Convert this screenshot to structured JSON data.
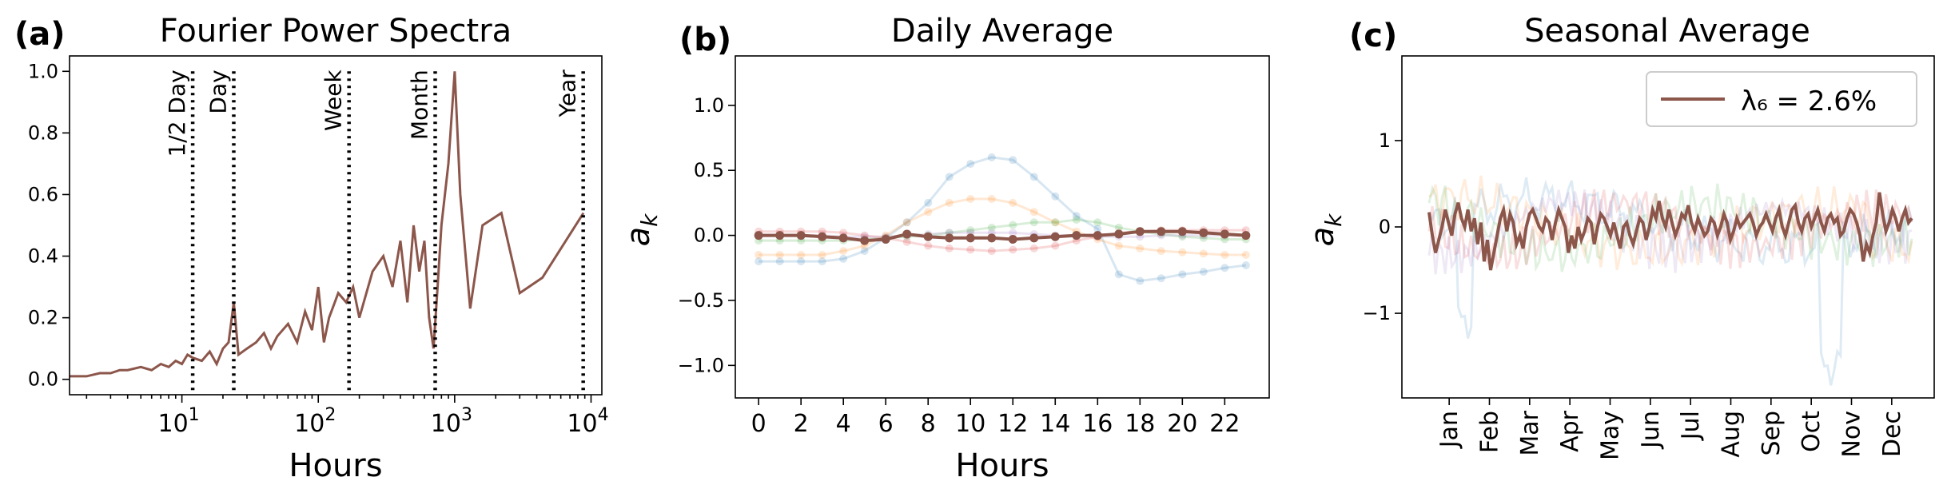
{
  "panels": {
    "a": {
      "letter": "(a)",
      "title": "Fourier Power Spectra",
      "xlabel": "Hours"
    },
    "b": {
      "letter": "(b)",
      "title": "Daily Average",
      "xlabel": "Hours",
      "ylabel": "a_k"
    },
    "c": {
      "letter": "(c)",
      "title": "Seasonal Average",
      "ylabel": "a_k"
    }
  },
  "colors": {
    "main": "#8c564b",
    "faded": [
      "#1f77b4",
      "#ff7f0e",
      "#2ca02c",
      "#d62728",
      "#9467bd"
    ]
  },
  "chart_data": [
    {
      "type": "line",
      "title": "Fourier Power Spectra",
      "xlabel": "Hours",
      "ylabel": "",
      "xscale": "log",
      "xlim": [
        1.5,
        12000
      ],
      "ylim": [
        -0.05,
        1.05
      ],
      "xticks": [
        "10^1",
        "10^2",
        "10^3",
        "10^4"
      ],
      "yticks": [
        "0.0",
        "0.2",
        "0.4",
        "0.6",
        "0.8",
        "1.0"
      ],
      "reference_lines": [
        {
          "label": "1/2 Day",
          "x": 12
        },
        {
          "label": "Day",
          "x": 24
        },
        {
          "label": "Week",
          "x": 168
        },
        {
          "label": "Month",
          "x": 720
        },
        {
          "label": "Year",
          "x": 8760
        }
      ],
      "series": [
        {
          "color": "#8c564b",
          "x": [
            1.5,
            2,
            2.5,
            3,
            3.5,
            4,
            5,
            6,
            7,
            8,
            9,
            10,
            11,
            12,
            14,
            16,
            18,
            20,
            22,
            24,
            26,
            30,
            35,
            40,
            45,
            50,
            60,
            70,
            80,
            90,
            100,
            110,
            120,
            140,
            160,
            180,
            200,
            250,
            300,
            350,
            400,
            450,
            500,
            550,
            600,
            650,
            700,
            750,
            800,
            900,
            1000,
            1100,
            1300,
            1600,
            2200,
            3000,
            4400,
            8800
          ],
          "y": [
            0.01,
            0.01,
            0.02,
            0.02,
            0.03,
            0.03,
            0.04,
            0.03,
            0.05,
            0.04,
            0.06,
            0.05,
            0.08,
            0.07,
            0.06,
            0.09,
            0.05,
            0.1,
            0.12,
            0.25,
            0.08,
            0.1,
            0.12,
            0.15,
            0.1,
            0.14,
            0.18,
            0.12,
            0.22,
            0.16,
            0.3,
            0.12,
            0.2,
            0.28,
            0.25,
            0.3,
            0.2,
            0.35,
            0.4,
            0.3,
            0.45,
            0.25,
            0.5,
            0.35,
            0.45,
            0.2,
            0.1,
            0.3,
            0.5,
            0.7,
            1.0,
            0.6,
            0.23,
            0.5,
            0.54,
            0.28,
            0.33,
            0.54
          ]
        }
      ]
    },
    {
      "type": "line",
      "title": "Daily Average",
      "xlabel": "Hours",
      "ylabel": "a_k",
      "xlim": [
        -1.1,
        24.1
      ],
      "ylim": [
        -1.25,
        1.38
      ],
      "xticks": [
        0,
        2,
        4,
        6,
        8,
        10,
        12,
        14,
        16,
        18,
        20,
        22
      ],
      "yticks": [
        "1.0",
        "0.5",
        "0.0",
        "−0.5",
        "−1.0"
      ],
      "x": [
        0,
        1,
        2,
        3,
        4,
        5,
        6,
        7,
        8,
        9,
        10,
        11,
        12,
        13,
        14,
        15,
        16,
        17,
        18,
        19,
        20,
        21,
        22,
        23
      ],
      "series": [
        {
          "color": "#1f77b4",
          "faded": true,
          "values": [
            -0.2,
            -0.2,
            -0.2,
            -0.2,
            -0.18,
            -0.12,
            -0.02,
            0.1,
            0.25,
            0.45,
            0.55,
            0.6,
            0.58,
            0.45,
            0.3,
            0.15,
            0.05,
            -0.3,
            -0.35,
            -0.33,
            -0.3,
            -0.28,
            -0.25,
            -0.23
          ]
        },
        {
          "color": "#ff7f0e",
          "faded": true,
          "values": [
            -0.15,
            -0.15,
            -0.15,
            -0.15,
            -0.12,
            -0.08,
            0.0,
            0.1,
            0.18,
            0.25,
            0.28,
            0.28,
            0.25,
            0.18,
            0.1,
            0.03,
            -0.03,
            -0.08,
            -0.1,
            -0.12,
            -0.13,
            -0.14,
            -0.15,
            -0.15
          ]
        },
        {
          "color": "#2ca02c",
          "faded": true,
          "values": [
            -0.04,
            -0.04,
            -0.04,
            -0.04,
            -0.04,
            -0.03,
            -0.02,
            -0.01,
            0.0,
            0.02,
            0.04,
            0.06,
            0.08,
            0.1,
            0.1,
            0.12,
            0.1,
            0.06,
            0.03,
            0.01,
            -0.01,
            -0.02,
            -0.03,
            -0.03
          ]
        },
        {
          "color": "#d62728",
          "faded": true,
          "values": [
            0.03,
            0.03,
            0.03,
            0.03,
            0.02,
            0.0,
            -0.02,
            -0.05,
            -0.08,
            -0.1,
            -0.11,
            -0.12,
            -0.11,
            -0.1,
            -0.08,
            -0.04,
            -0.01,
            0.02,
            0.03,
            0.04,
            0.04,
            0.04,
            0.04,
            0.04
          ]
        },
        {
          "color": "#9467bd",
          "faded": true,
          "values": [
            0.0,
            0.0,
            0.0,
            0.0,
            -0.01,
            -0.01,
            -0.01,
            0.0,
            0.01,
            0.02,
            0.02,
            0.02,
            0.02,
            0.01,
            0.0,
            0.0,
            -0.01,
            -0.01,
            -0.01,
            0.0,
            0.0,
            0.0,
            0.0,
            0.0
          ]
        },
        {
          "color": "#8c564b",
          "faded": false,
          "values": [
            0.0,
            0.0,
            0.0,
            -0.01,
            -0.02,
            -0.04,
            -0.03,
            0.01,
            -0.01,
            -0.02,
            -0.02,
            -0.02,
            -0.03,
            -0.02,
            -0.01,
            0.0,
            0.0,
            0.01,
            0.03,
            0.03,
            0.03,
            0.02,
            0.01,
            0.0
          ]
        }
      ]
    },
    {
      "type": "line",
      "title": "Seasonal Average",
      "xlabel": "",
      "ylabel": "a_k",
      "ylim": [
        -1.98,
        1.98
      ],
      "xticks": [
        "Jan",
        "Feb",
        "Mar",
        "Apr",
        "May",
        "Jun",
        "Jul",
        "Aug",
        "Sep",
        "Oct",
        "Nov",
        "Dec"
      ],
      "yticks": [
        "1",
        "0",
        "−1"
      ],
      "legend": {
        "text": "λ₆ = 2.6%",
        "placement": "top-right"
      },
      "series": [
        {
          "name": "λ₆ = 2.6%",
          "color": "#8c564b",
          "values": [
            0.17,
            -0.1,
            -0.3,
            -0.15,
            0.0,
            0.2,
            0.05,
            -0.1,
            0.15,
            0.28,
            0.1,
            0.0,
            0.2,
            -0.05,
            0.1,
            -0.2,
            0.05,
            -0.4,
            -0.15,
            -0.5,
            -0.3,
            -0.1,
            0.1,
            0.2,
            -0.05,
            0.15,
            0.05,
            -0.2,
            -0.1,
            -0.25,
            0.0,
            0.15,
            0.2,
            0.1,
            0.0,
            -0.05,
            0.1,
            0.05,
            -0.15,
            0.05,
            0.2,
            0.1,
            0.0,
            -0.3,
            -0.1,
            -0.25,
            0.0,
            -0.15,
            -0.05,
            0.1,
            0.05,
            -0.2,
            0.0,
            0.15,
            0.1,
            0.0,
            -0.1,
            0.05,
            -0.1,
            -0.25,
            0.0,
            0.05,
            -0.1,
            -0.2,
            -0.05,
            0.1,
            0.05,
            -0.15,
            0.0,
            0.2,
            0.1,
            0.3,
            0.1,
            0.0,
            0.2,
            0.05,
            -0.1,
            0.0,
            0.15,
            0.1,
            0.25,
            0.05,
            -0.05,
            0.1,
            0.0,
            -0.1,
            -0.05,
            0.1,
            0.05,
            -0.1,
            0.0,
            0.15,
            0.05,
            -0.15,
            -0.05,
            0.1,
            0.0,
            0.05,
            0.1,
            0.15,
            0.05,
            -0.1,
            0.0,
            0.05,
            0.15,
            0.05,
            -0.05,
            0.1,
            0.2,
            0.0,
            -0.1,
            0.05,
            0.2,
            0.25,
            0.05,
            -0.05,
            0.1,
            0.15,
            0.0,
            0.1,
            0.2,
            0.05,
            -0.05,
            0.1,
            0.15,
            0.05,
            0.1,
            -0.1,
            -0.05,
            0.1,
            0.2,
            0.15,
            0.05,
            -0.1,
            -0.4,
            -0.2,
            -0.3,
            -0.1,
            0.05,
            0.4,
            0.15,
            -0.05,
            0.05,
            0.2,
            0.1,
            -0.05,
            0.1,
            0.2,
            0.05,
            0.1
          ]
        }
      ]
    }
  ]
}
